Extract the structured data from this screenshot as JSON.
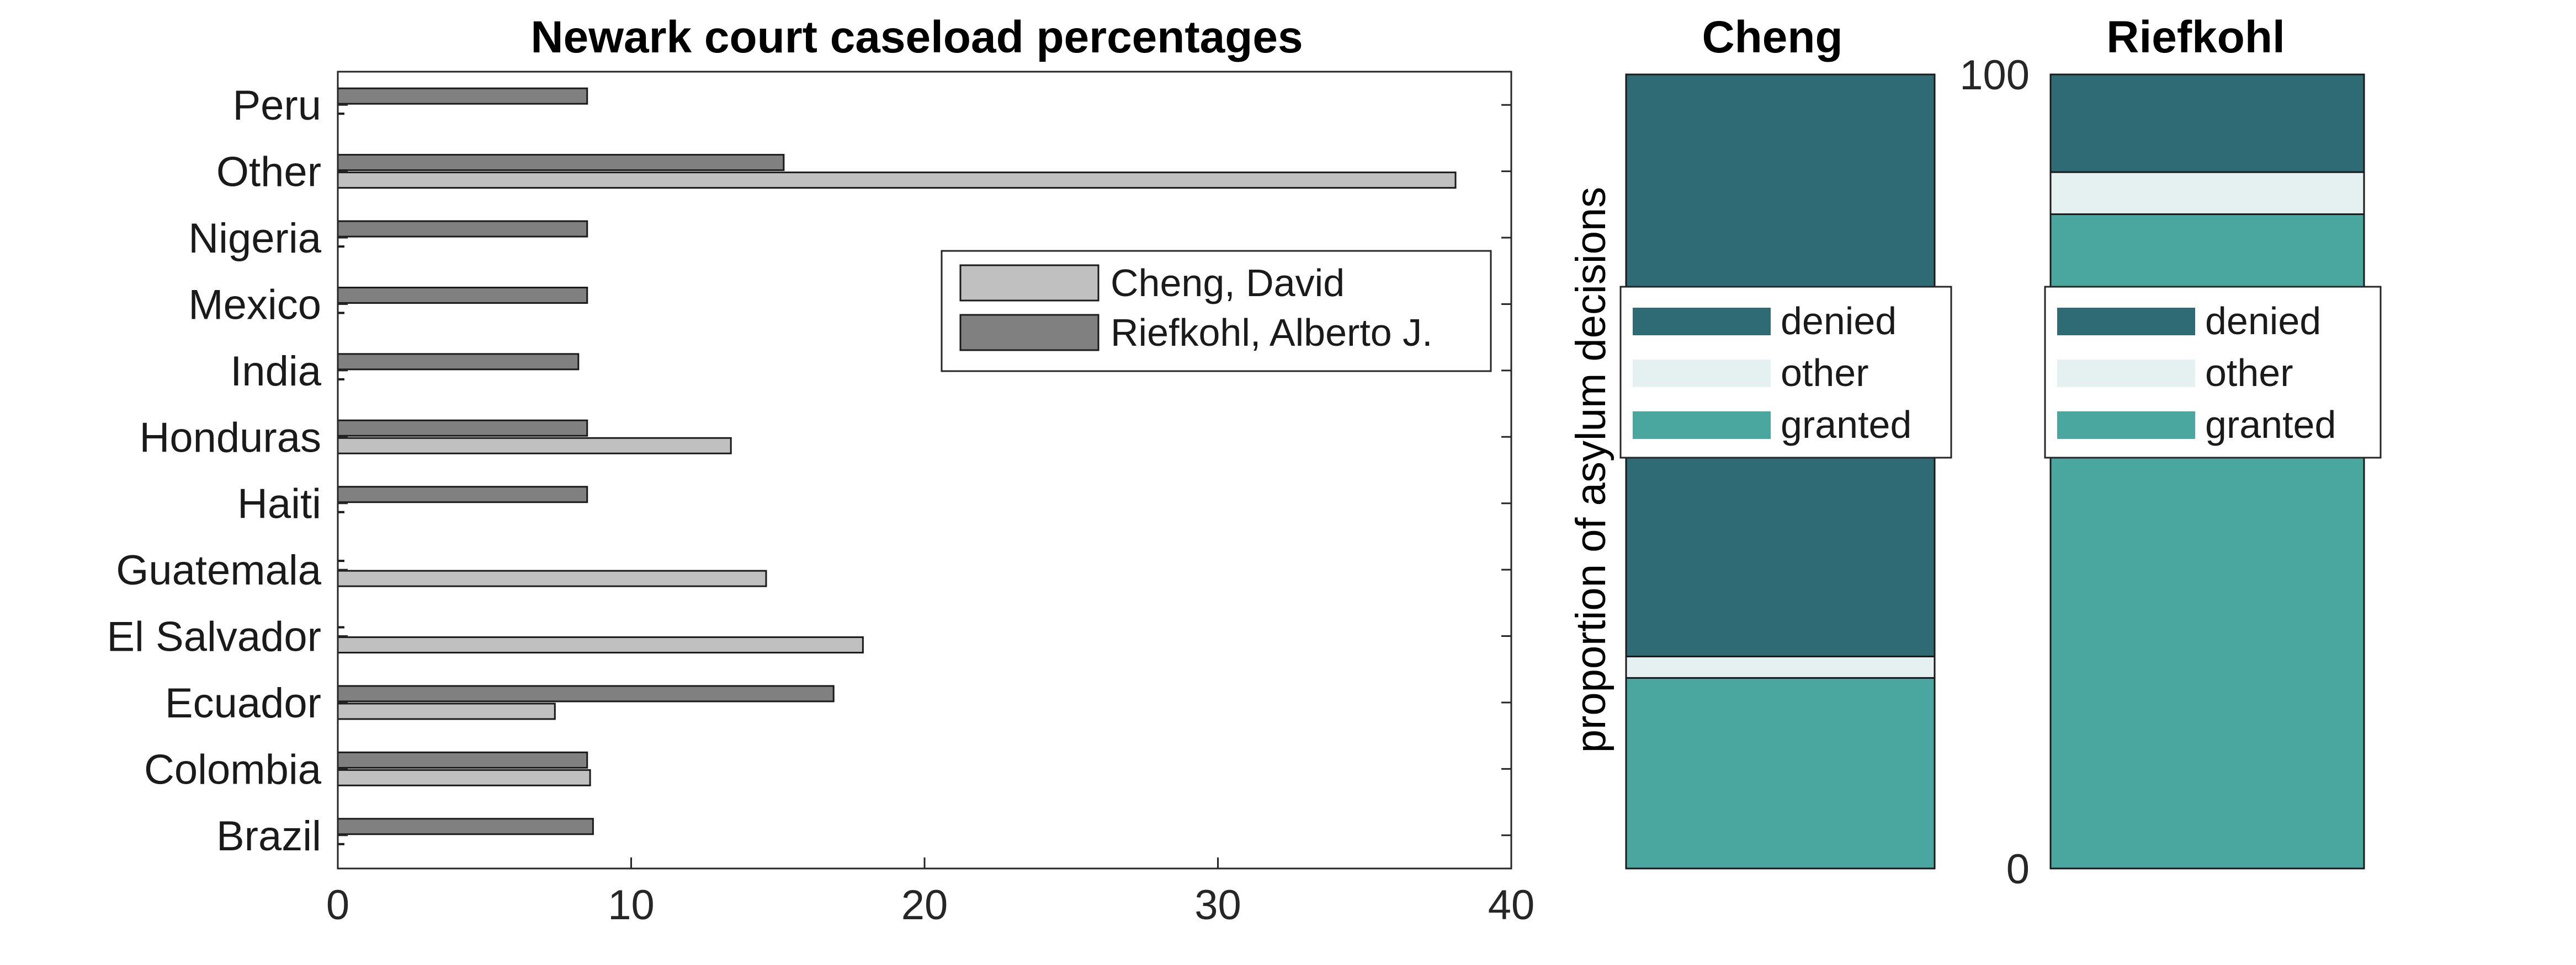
{
  "chart_data": [
    {
      "type": "bar",
      "orientation": "horizontal",
      "title": "Newark court caseload percentages",
      "xlabel": "",
      "ylabel": "",
      "xlim": [
        0,
        40
      ],
      "xticks": [
        0,
        10,
        20,
        30,
        40
      ],
      "grid": false,
      "legend_position": "top-right",
      "categories": [
        "Peru",
        "Other",
        "Nigeria",
        "Mexico",
        "India",
        "Honduras",
        "Haiti",
        "Guatemala",
        "El Salvador",
        "Ecuador",
        "Colombia",
        "Brazil"
      ],
      "series": [
        {
          "name": "Cheng, David",
          "color": "#c0c0c0",
          "values": [
            0,
            38.1,
            0,
            0,
            0,
            13.4,
            0,
            14.6,
            17.9,
            7.4,
            8.6,
            0
          ]
        },
        {
          "name": "Riefkohl, Alberto J.",
          "color": "#808080",
          "values": [
            8.5,
            15.2,
            8.5,
            8.5,
            8.2,
            8.5,
            8.5,
            0,
            0,
            16.9,
            8.5,
            8.7
          ]
        }
      ]
    },
    {
      "type": "bar",
      "stacked": true,
      "title": "Cheng",
      "ylabel": "proportion of asylum decisions",
      "ylim": [
        0,
        100
      ],
      "legend_position": "center",
      "series": [
        {
          "name": "denied",
          "color": "#2e6b74",
          "value": 73.3
        },
        {
          "name": "other",
          "color": "#e5f0f1",
          "value": 2.7
        },
        {
          "name": "granted",
          "color": "#4aa79f",
          "value": 24.0
        }
      ]
    },
    {
      "type": "bar",
      "stacked": true,
      "title": "Riefkohl",
      "ylim": [
        0,
        100
      ],
      "yticks": [
        0,
        100
      ],
      "legend_position": "center",
      "series": [
        {
          "name": "denied",
          "color": "#2e6b74",
          "value": 12.3
        },
        {
          "name": "other",
          "color": "#e5f0f1",
          "value": 5.3
        },
        {
          "name": "granted",
          "color": "#4aa79f",
          "value": 82.4
        }
      ]
    }
  ]
}
